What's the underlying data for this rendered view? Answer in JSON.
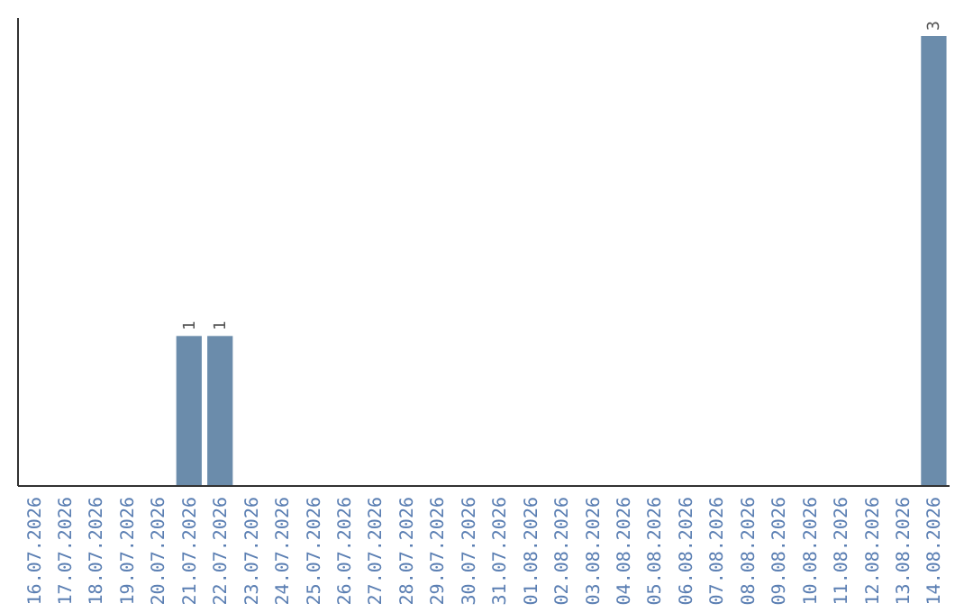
{
  "chart_data": {
    "type": "bar",
    "categories": [
      "16.07.2026",
      "17.07.2026",
      "18.07.2026",
      "19.07.2026",
      "20.07.2026",
      "21.07.2026",
      "22.07.2026",
      "23.07.2026",
      "24.07.2026",
      "25.07.2026",
      "26.07.2026",
      "27.07.2026",
      "28.07.2026",
      "29.07.2026",
      "30.07.2026",
      "31.07.2026",
      "01.08.2026",
      "02.08.2026",
      "03.08.2026",
      "04.08.2026",
      "05.08.2026",
      "06.08.2026",
      "07.08.2026",
      "08.08.2026",
      "09.08.2026",
      "10.08.2026",
      "11.08.2026",
      "12.08.2026",
      "13.08.2026",
      "14.08.2026"
    ],
    "values": [
      0,
      0,
      0,
      0,
      0,
      1,
      1,
      0,
      0,
      0,
      0,
      0,
      0,
      0,
      0,
      0,
      0,
      0,
      0,
      0,
      0,
      0,
      0,
      0,
      0,
      0,
      0,
      0,
      0,
      3
    ],
    "value_labels": [
      null,
      null,
      null,
      null,
      null,
      "1",
      "1",
      null,
      null,
      null,
      null,
      null,
      null,
      null,
      null,
      null,
      null,
      null,
      null,
      null,
      null,
      null,
      null,
      null,
      null,
      null,
      null,
      null,
      null,
      "3"
    ],
    "color": "#6b8cab",
    "tick_labels": "x"
  }
}
